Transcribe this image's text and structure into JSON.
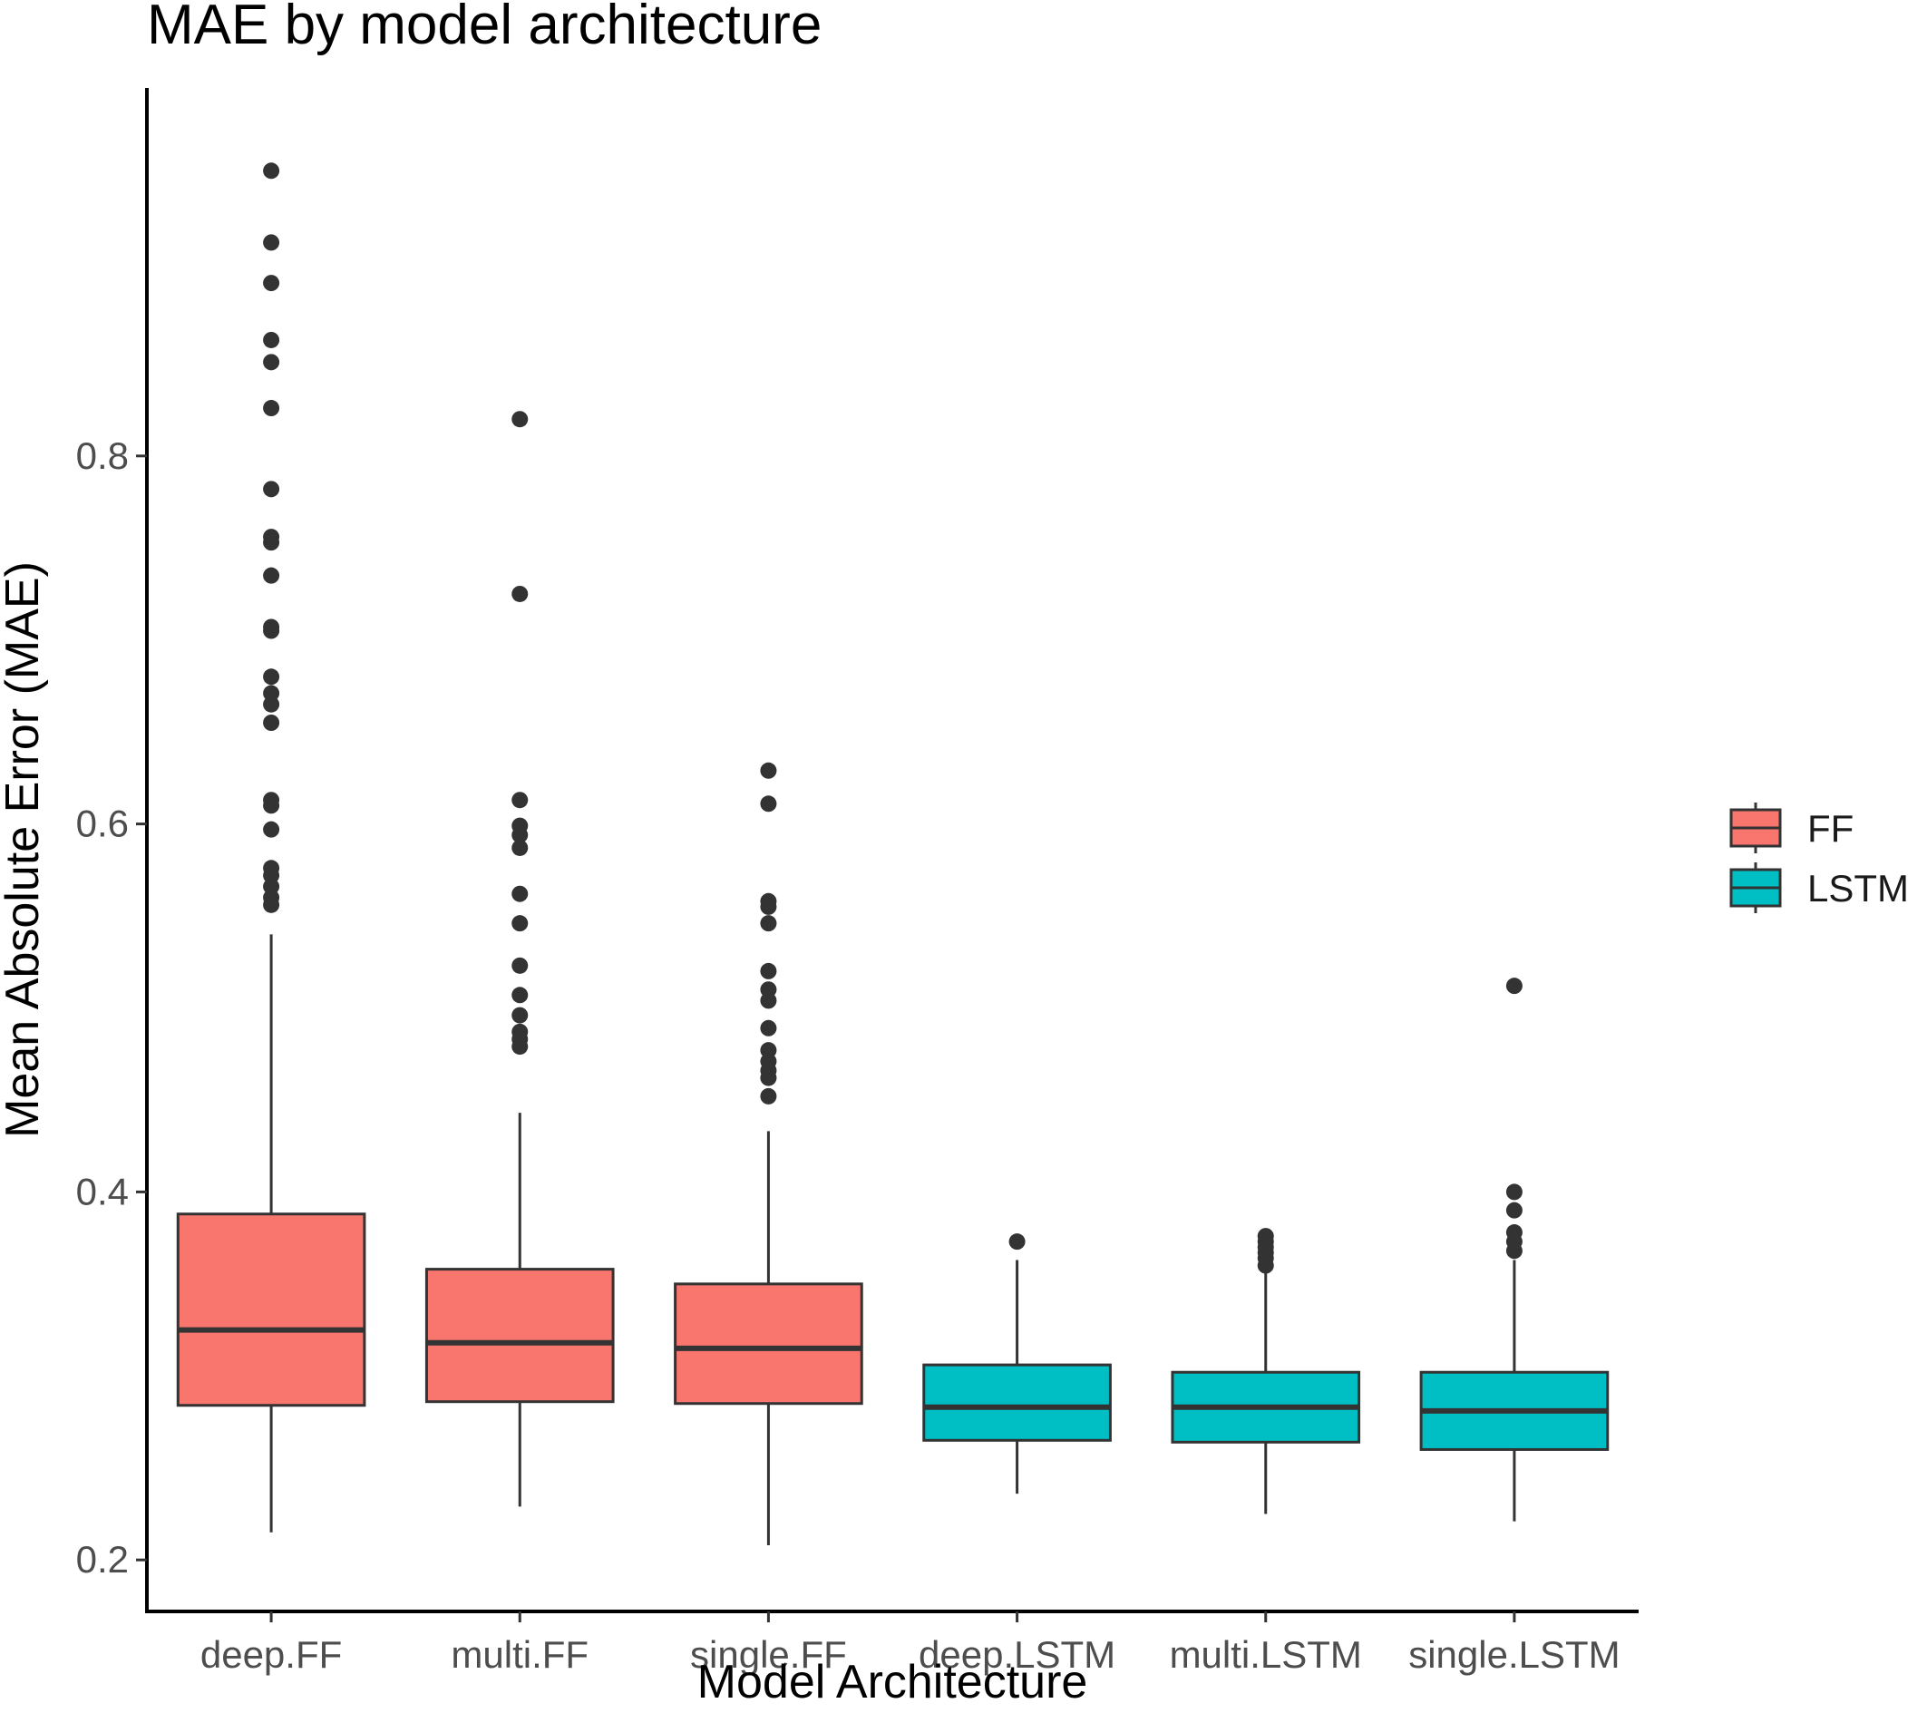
{
  "chart_data": {
    "type": "box",
    "title": "MAE by model architecture",
    "xlabel": "Model Architecture",
    "ylabel": "Mean Absolute Error (MAE)",
    "ylim": [
      0.172,
      1.0
    ],
    "y_ticks": [
      0.2,
      0.4,
      0.6,
      0.8
    ],
    "y_tick_labels": [
      "0.2",
      "0.4",
      "0.6",
      "0.8"
    ],
    "grid": false,
    "legend_position": "right",
    "legend": [
      {
        "name": "FF",
        "color": "#F8766D"
      },
      {
        "name": "LSTM",
        "color": "#00BFC4"
      }
    ],
    "categories": [
      "deep.FF",
      "multi.FF",
      "single.FF",
      "deep.LSTM",
      "multi.LSTM",
      "single.LSTM"
    ],
    "boxes": [
      {
        "category": "deep.FF",
        "group": "FF",
        "whisker_low": 0.215,
        "q1": 0.284,
        "median": 0.325,
        "q3": 0.388,
        "whisker_high": 0.54,
        "outliers": [
          0.955,
          0.916,
          0.894,
          0.863,
          0.851,
          0.826,
          0.782,
          0.756,
          0.753,
          0.735,
          0.707,
          0.705,
          0.68,
          0.671,
          0.665,
          0.655,
          0.613,
          0.61,
          0.597,
          0.576,
          0.572,
          0.566,
          0.56,
          0.556
        ]
      },
      {
        "category": "multi.FF",
        "group": "FF",
        "whisker_low": 0.229,
        "q1": 0.286,
        "median": 0.318,
        "q3": 0.358,
        "whisker_high": 0.443,
        "outliers": [
          0.82,
          0.725,
          0.613,
          0.599,
          0.594,
          0.587,
          0.562,
          0.546,
          0.523,
          0.507,
          0.496,
          0.487,
          0.483,
          0.479
        ]
      },
      {
        "category": "single.FF",
        "group": "FF",
        "whisker_low": 0.208,
        "q1": 0.285,
        "median": 0.315,
        "q3": 0.35,
        "whisker_high": 0.433,
        "outliers": [
          0.629,
          0.611,
          0.558,
          0.555,
          0.546,
          0.52,
          0.51,
          0.504,
          0.489,
          0.477,
          0.471,
          0.466,
          0.462,
          0.452
        ]
      },
      {
        "category": "deep.LSTM",
        "group": "LSTM",
        "whisker_low": 0.236,
        "q1": 0.265,
        "median": 0.283,
        "q3": 0.306,
        "whisker_high": 0.363,
        "outliers": [
          0.373
        ]
      },
      {
        "category": "multi.LSTM",
        "group": "LSTM",
        "whisker_low": 0.225,
        "q1": 0.264,
        "median": 0.283,
        "q3": 0.302,
        "whisker_high": 0.357,
        "outliers": [
          0.376,
          0.373,
          0.37,
          0.367,
          0.364,
          0.36
        ]
      },
      {
        "category": "single.LSTM",
        "group": "LSTM",
        "whisker_low": 0.221,
        "q1": 0.26,
        "median": 0.281,
        "q3": 0.302,
        "whisker_high": 0.363,
        "outliers": [
          0.512,
          0.4,
          0.39,
          0.378,
          0.373,
          0.368
        ]
      }
    ]
  }
}
